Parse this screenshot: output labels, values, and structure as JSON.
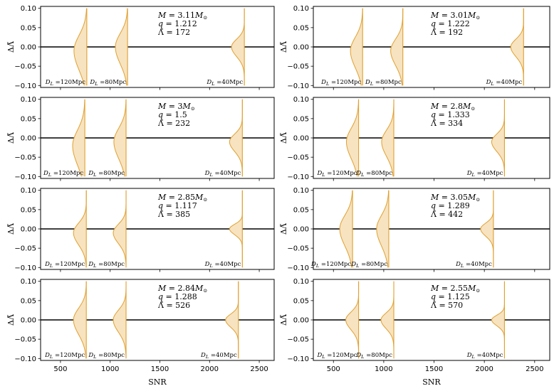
{
  "figure": {
    "xlabel": "SNR",
    "ylabel": "ΔΛ̃",
    "x_ticks": [
      500,
      1000,
      1500,
      2000,
      2500
    ],
    "x_tick_labels": [
      "500",
      "1000",
      "1500",
      "2000",
      "2500"
    ],
    "y_ticks": [
      -0.1,
      -0.05,
      0.0,
      0.05,
      0.1
    ],
    "y_tick_labels": [
      "−0.10",
      "−0.05",
      "0.00",
      "0.05",
      "0.10"
    ],
    "xlim": [
      300,
      2650
    ],
    "ylim": [
      -0.105,
      0.105
    ],
    "fill_color": "#f7e3c0",
    "line_color": "#e0a030",
    "zero_line_color": "#000000"
  },
  "chart_data": [
    {
      "type": "violin",
      "panel": "row1-left",
      "M": "3.11",
      "q": "1.212",
      "lambda": "172",
      "series": [
        {
          "dl": "120Mpc",
          "snr": 765,
          "peak_y": -0.01,
          "width": 0.4,
          "sigma": 0.04
        },
        {
          "dl": "80Mpc",
          "snr": 1175,
          "peak_y": 0.0,
          "width": 0.38,
          "sigma": 0.035
        },
        {
          "dl": "40Mpc",
          "snr": 2350,
          "peak_y": 0.0,
          "width": 0.4,
          "sigma": 0.02
        }
      ]
    },
    {
      "type": "violin",
      "panel": "row1-right",
      "M": "3.01",
      "q": "1.222",
      "lambda": "192",
      "series": [
        {
          "dl": "120Mpc",
          "snr": 790,
          "peak_y": -0.01,
          "width": 0.38,
          "sigma": 0.035
        },
        {
          "dl": "80Mpc",
          "snr": 1190,
          "peak_y": -0.01,
          "width": 0.38,
          "sigma": 0.03
        },
        {
          "dl": "40Mpc",
          "snr": 2390,
          "peak_y": 0.0,
          "width": 0.4,
          "sigma": 0.02
        }
      ]
    },
    {
      "type": "violin",
      "panel": "row2-left",
      "M": "3",
      "q": "1.5",
      "lambda": "232",
      "series": [
        {
          "dl": "120Mpc",
          "snr": 745,
          "peak_y": -0.02,
          "width": 0.38,
          "sigma": 0.04
        },
        {
          "dl": "80Mpc",
          "snr": 1160,
          "peak_y": -0.01,
          "width": 0.38,
          "sigma": 0.035
        },
        {
          "dl": "40Mpc",
          "snr": 2330,
          "peak_y": -0.01,
          "width": 0.4,
          "sigma": 0.02
        }
      ]
    },
    {
      "type": "violin",
      "panel": "row2-right",
      "M": "2.8",
      "q": "1.333",
      "lambda": "334",
      "series": [
        {
          "dl": "120Mpc",
          "snr": 750,
          "peak_y": -0.01,
          "width": 0.38,
          "sigma": 0.035
        },
        {
          "dl": "80Mpc",
          "snr": 1100,
          "peak_y": -0.01,
          "width": 0.38,
          "sigma": 0.03
        },
        {
          "dl": "40Mpc",
          "snr": 2200,
          "peak_y": -0.01,
          "width": 0.4,
          "sigma": 0.02
        }
      ]
    },
    {
      "type": "violin",
      "panel": "row3-left",
      "M": "2.85",
      "q": "1.117",
      "lambda": "385",
      "series": [
        {
          "dl": "120Mpc",
          "snr": 760,
          "peak_y": -0.01,
          "width": 0.4,
          "sigma": 0.025
        },
        {
          "dl": "80Mpc",
          "snr": 1160,
          "peak_y": -0.01,
          "width": 0.4,
          "sigma": 0.022
        },
        {
          "dl": "40Mpc",
          "snr": 2330,
          "peak_y": 0.0,
          "width": 0.4,
          "sigma": 0.012
        }
      ]
    },
    {
      "type": "violin",
      "panel": "row3-right",
      "M": "3.05",
      "q": "1.289",
      "lambda": "442",
      "series": [
        {
          "dl": "120Mpc",
          "snr": 690,
          "peak_y": 0.0,
          "width": 0.4,
          "sigma": 0.035
        },
        {
          "dl": "80Mpc",
          "snr": 1050,
          "peak_y": 0.0,
          "width": 0.38,
          "sigma": 0.035
        },
        {
          "dl": "40Mpc",
          "snr": 2090,
          "peak_y": 0.0,
          "width": 0.4,
          "sigma": 0.015
        }
      ]
    },
    {
      "type": "violin",
      "panel": "row4-left",
      "M": "2.84",
      "q": "1.288",
      "lambda": "526",
      "series": [
        {
          "dl": "120Mpc",
          "snr": 760,
          "peak_y": 0.0,
          "width": 0.4,
          "sigma": 0.03
        },
        {
          "dl": "80Mpc",
          "snr": 1160,
          "peak_y": 0.0,
          "width": 0.4,
          "sigma": 0.025
        },
        {
          "dl": "40Mpc",
          "snr": 2290,
          "peak_y": 0.0,
          "width": 0.4,
          "sigma": 0.015
        }
      ]
    },
    {
      "type": "violin",
      "panel": "row4-right",
      "M": "2.55",
      "q": "1.125",
      "lambda": "570",
      "series": [
        {
          "dl": "120Mpc",
          "snr": 750,
          "peak_y": 0.0,
          "width": 0.4,
          "sigma": 0.02
        },
        {
          "dl": "80Mpc",
          "snr": 1100,
          "peak_y": 0.0,
          "width": 0.4,
          "sigma": 0.018
        },
        {
          "dl": "40Mpc",
          "snr": 2200,
          "peak_y": 0.0,
          "width": 0.4,
          "sigma": 0.012
        }
      ]
    }
  ]
}
